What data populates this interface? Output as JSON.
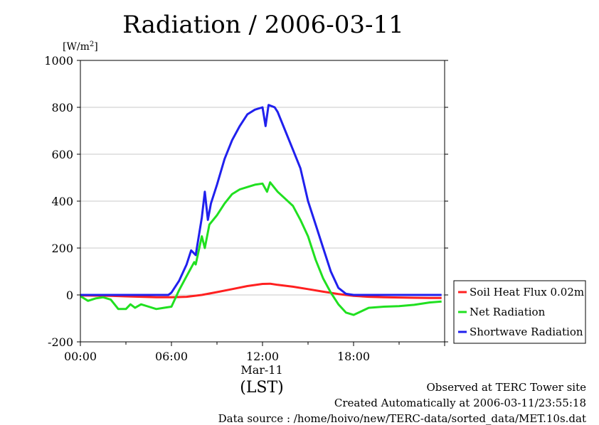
{
  "chart_data": {
    "type": "line",
    "title": "Radiation / 2006-03-11",
    "y_unit": "[W/m2]",
    "y_unit_base": "[W/m",
    "y_unit_sup": "2",
    "y_unit_close": "]",
    "xlabel": "(LST)",
    "date_label": "Mar-11",
    "xlim": [
      "00:00",
      "24:00"
    ],
    "ylim": [
      -200,
      1000
    ],
    "grid": true,
    "legend_position": "lower-right outside",
    "x_ticks": [
      {
        "hour": 0,
        "label": "00:00"
      },
      {
        "hour": 6,
        "label": "06:00"
      },
      {
        "hour": 12,
        "label": "12:00"
      },
      {
        "hour": 18,
        "label": "18:00"
      }
    ],
    "y_ticks": [
      -200,
      0,
      200,
      400,
      600,
      800,
      1000
    ],
    "series": [
      {
        "name": "Soil Heat Flux 0.02m",
        "color": "#ff2020",
        "points": [
          [
            0,
            -2
          ],
          [
            1,
            -3
          ],
          [
            2,
            -4
          ],
          [
            3,
            -6
          ],
          [
            4,
            -8
          ],
          [
            5,
            -10
          ],
          [
            6,
            -10
          ],
          [
            7,
            -8
          ],
          [
            8,
            0
          ],
          [
            9,
            12
          ],
          [
            10,
            25
          ],
          [
            11,
            38
          ],
          [
            12,
            47
          ],
          [
            12.5,
            48
          ],
          [
            13,
            43
          ],
          [
            14,
            35
          ],
          [
            15,
            25
          ],
          [
            16,
            14
          ],
          [
            17,
            4
          ],
          [
            18,
            -4
          ],
          [
            19,
            -8
          ],
          [
            20,
            -10
          ],
          [
            21,
            -11
          ],
          [
            22,
            -12
          ],
          [
            23,
            -13
          ],
          [
            23.8,
            -13
          ]
        ]
      },
      {
        "name": "Net Radiation",
        "color": "#20e020",
        "points": [
          [
            0,
            -5
          ],
          [
            0.5,
            -25
          ],
          [
            1,
            -15
          ],
          [
            1.5,
            -10
          ],
          [
            2,
            -20
          ],
          [
            2.5,
            -60
          ],
          [
            3,
            -60
          ],
          [
            3.3,
            -40
          ],
          [
            3.6,
            -55
          ],
          [
            4,
            -40
          ],
          [
            4.5,
            -50
          ],
          [
            5,
            -60
          ],
          [
            5.5,
            -55
          ],
          [
            6,
            -50
          ],
          [
            6.5,
            20
          ],
          [
            7,
            80
          ],
          [
            7.5,
            140
          ],
          [
            7.6,
            130
          ],
          [
            8,
            250
          ],
          [
            8.2,
            200
          ],
          [
            8.5,
            300
          ],
          [
            9,
            340
          ],
          [
            9.5,
            390
          ],
          [
            10,
            430
          ],
          [
            10.5,
            450
          ],
          [
            11,
            460
          ],
          [
            11.5,
            470
          ],
          [
            12,
            475
          ],
          [
            12.3,
            440
          ],
          [
            12.5,
            480
          ],
          [
            13,
            440
          ],
          [
            13.5,
            410
          ],
          [
            14,
            380
          ],
          [
            14.5,
            320
          ],
          [
            15,
            250
          ],
          [
            15.5,
            150
          ],
          [
            16,
            70
          ],
          [
            16.5,
            10
          ],
          [
            17,
            -40
          ],
          [
            17.5,
            -75
          ],
          [
            18,
            -85
          ],
          [
            18.5,
            -70
          ],
          [
            19,
            -55
          ],
          [
            20,
            -50
          ],
          [
            21,
            -48
          ],
          [
            22,
            -42
          ],
          [
            23,
            -32
          ],
          [
            23.8,
            -28
          ]
        ]
      },
      {
        "name": "Shortwave Radiation",
        "color": "#2020ee",
        "points": [
          [
            0,
            0
          ],
          [
            1,
            0
          ],
          [
            2,
            0
          ],
          [
            3,
            0
          ],
          [
            4,
            0
          ],
          [
            5,
            0
          ],
          [
            5.8,
            0
          ],
          [
            6,
            10
          ],
          [
            6.5,
            60
          ],
          [
            7,
            130
          ],
          [
            7.3,
            190
          ],
          [
            7.6,
            170
          ],
          [
            8,
            330
          ],
          [
            8.2,
            440
          ],
          [
            8.4,
            320
          ],
          [
            8.6,
            390
          ],
          [
            9,
            470
          ],
          [
            9.5,
            580
          ],
          [
            10,
            660
          ],
          [
            10.5,
            720
          ],
          [
            11,
            770
          ],
          [
            11.5,
            790
          ],
          [
            12,
            800
          ],
          [
            12.2,
            720
          ],
          [
            12.4,
            810
          ],
          [
            12.8,
            800
          ],
          [
            13,
            780
          ],
          [
            13.5,
            700
          ],
          [
            14,
            620
          ],
          [
            14.5,
            540
          ],
          [
            15,
            400
          ],
          [
            15.5,
            300
          ],
          [
            16,
            200
          ],
          [
            16.5,
            100
          ],
          [
            17,
            30
          ],
          [
            17.5,
            5
          ],
          [
            18,
            0
          ],
          [
            19,
            0
          ],
          [
            20,
            0
          ],
          [
            21,
            0
          ],
          [
            22,
            0
          ],
          [
            23,
            0
          ],
          [
            23.8,
            0
          ]
        ]
      }
    ]
  },
  "footer": {
    "line1": "Observed at TERC Tower site",
    "line2": "Created Automatically at 2006-03-11/23:55:18",
    "line3": "Data source : /home/hoivo/new/TERC-data/sorted_data/MET.10s.dat"
  }
}
